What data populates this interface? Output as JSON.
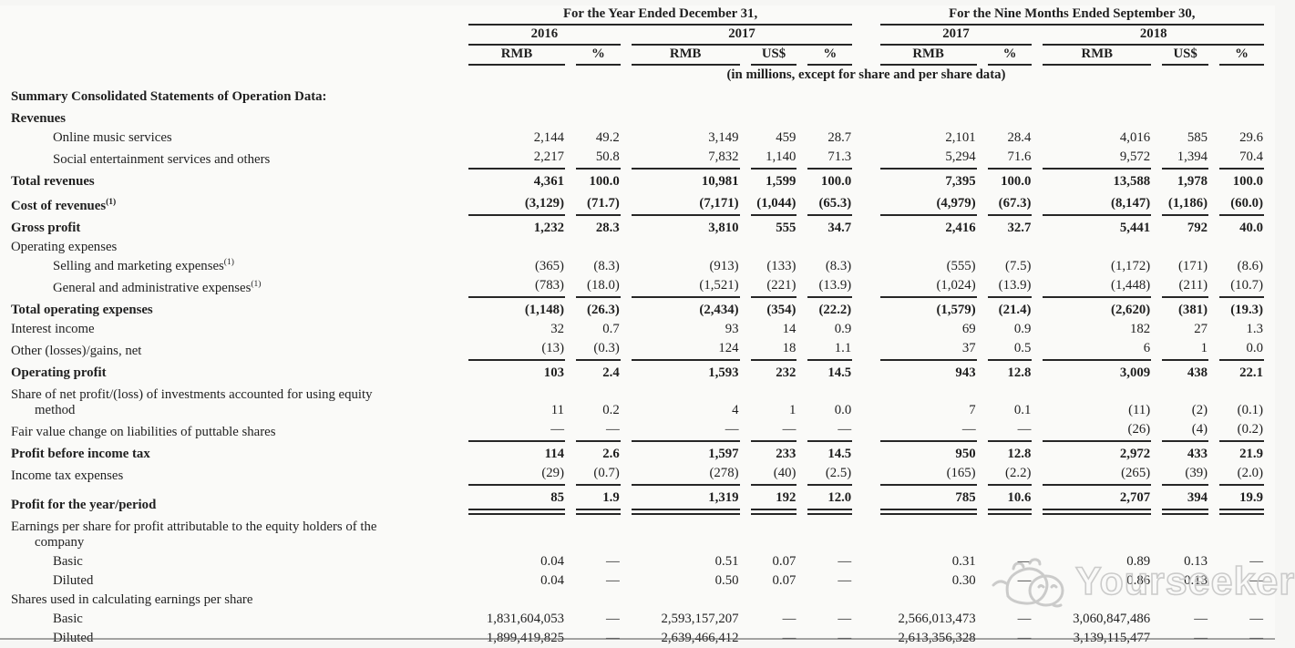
{
  "header": {
    "group1": "For the Year Ended December 31,",
    "group2": "For the Nine Months Ended September 30,",
    "periods": [
      {
        "year": "2016",
        "cols": [
          "RMB",
          "%"
        ]
      },
      {
        "year": "2017",
        "cols": [
          "RMB",
          "US$",
          "%"
        ]
      },
      {
        "year": "2017",
        "cols": [
          "RMB",
          "%"
        ]
      },
      {
        "year": "2018",
        "cols": [
          "RMB",
          "US$",
          "%"
        ]
      }
    ],
    "units_note": "(in millions, except for share and per share data)"
  },
  "watermark": {
    "text": "Yourseeker",
    "logo": "yourseeker-mascot-icon",
    "color": "#c6c6c6"
  },
  "accent_colors": {
    "text": "#1f1f1f",
    "rule": "#262626",
    "background": "#fafaf8"
  },
  "rows": [
    {
      "label": "Summary Consolidated Statements of Operation Data:",
      "bold": true,
      "values": null
    },
    {
      "label": "Revenues",
      "bold": true,
      "values": null
    },
    {
      "label": "Online music services",
      "indent": 1,
      "values": [
        "2,144",
        "49.2",
        "3,149",
        "459",
        "28.7",
        "2,101",
        "28.4",
        "4,016",
        "585",
        "29.6"
      ]
    },
    {
      "label": "Social entertainment services and others",
      "indent": 1,
      "underline": "s",
      "values": [
        "2,217",
        "50.8",
        "7,832",
        "1,140",
        "71.3",
        "5,294",
        "71.6",
        "9,572",
        "1,394",
        "70.4"
      ]
    },
    {
      "label": "Total revenues",
      "bold": true,
      "vbold": true,
      "values": [
        "4,361",
        "100.0",
        "10,981",
        "1,599",
        "100.0",
        "7,395",
        "100.0",
        "13,588",
        "1,978",
        "100.0"
      ]
    },
    {
      "label": "Cost of revenues",
      "sup": "(1)",
      "bold": true,
      "vbold": true,
      "underline": "s",
      "values": [
        "(3,129)",
        "(71.7)",
        "(7,171)",
        "(1,044)",
        "(65.3)",
        "(4,979)",
        "(67.3)",
        "(8,147)",
        "(1,186)",
        "(60.0)"
      ]
    },
    {
      "label": "Gross profit",
      "bold": true,
      "vbold": true,
      "values": [
        "1,232",
        "28.3",
        "3,810",
        "555",
        "34.7",
        "2,416",
        "32.7",
        "5,441",
        "792",
        "40.0"
      ]
    },
    {
      "label": "Operating expenses",
      "values": null
    },
    {
      "label": "Selling and marketing expenses",
      "sup": "(1)",
      "indent": 1,
      "values": [
        "(365)",
        "(8.3)",
        "(913)",
        "(133)",
        "(8.3)",
        "(555)",
        "(7.5)",
        "(1,172)",
        "(171)",
        "(8.6)"
      ]
    },
    {
      "label": "General and administrative expenses",
      "sup": "(1)",
      "indent": 1,
      "underline": "s",
      "values": [
        "(783)",
        "(18.0)",
        "(1,521)",
        "(221)",
        "(13.9)",
        "(1,024)",
        "(13.9)",
        "(1,448)",
        "(211)",
        "(10.7)"
      ]
    },
    {
      "label": "Total operating expenses",
      "bold": true,
      "vbold": true,
      "values": [
        "(1,148)",
        "(26.3)",
        "(2,434)",
        "(354)",
        "(22.2)",
        "(1,579)",
        "(21.4)",
        "(2,620)",
        "(381)",
        "(19.3)"
      ]
    },
    {
      "label": "Interest income",
      "values": [
        "32",
        "0.7",
        "93",
        "14",
        "0.9",
        "69",
        "0.9",
        "182",
        "27",
        "1.3"
      ]
    },
    {
      "label": "Other (losses)/gains, net",
      "underline": "s",
      "values": [
        "(13)",
        "(0.3)",
        "124",
        "18",
        "1.1",
        "37",
        "0.5",
        "6",
        "1",
        "0.0"
      ]
    },
    {
      "label": "Operating profit",
      "bold": true,
      "vbold": true,
      "values": [
        "103",
        "2.4",
        "1,593",
        "232",
        "14.5",
        "943",
        "12.8",
        "3,009",
        "438",
        "22.1"
      ]
    },
    {
      "label": "Share of net profit/(loss) of investments accounted for using equity",
      "label2": "method",
      "values": [
        "11",
        "0.2",
        "4",
        "1",
        "0.0",
        "7",
        "0.1",
        "(11)",
        "(2)",
        "(0.1)"
      ]
    },
    {
      "label": "Fair value change on liabilities of puttable shares",
      "underline": "s",
      "values": [
        "—",
        "—",
        "—",
        "—",
        "—",
        "—",
        "—",
        "(26)",
        "(4)",
        "(0.2)"
      ]
    },
    {
      "label": "Profit before income tax",
      "bold": true,
      "vbold": true,
      "values": [
        "114",
        "2.6",
        "1,597",
        "233",
        "14.5",
        "950",
        "12.8",
        "2,972",
        "433",
        "21.9"
      ]
    },
    {
      "label": "Income tax expenses",
      "underline": "s",
      "values": [
        "(29)",
        "(0.7)",
        "(278)",
        "(40)",
        "(2.5)",
        "(165)",
        "(2.2)",
        "(265)",
        "(39)",
        "(2.0)"
      ]
    },
    {
      "label": "Profit for the year/period",
      "bold": true,
      "vbold": true,
      "underline": "d",
      "values": [
        "85",
        "1.9",
        "1,319",
        "192",
        "12.0",
        "785",
        "10.6",
        "2,707",
        "394",
        "19.9"
      ]
    },
    {
      "label": "Earnings per share for profit attributable to the equity holders of the",
      "label2": "company",
      "values": null
    },
    {
      "label": "Basic",
      "indent": 1,
      "values": [
        "0.04",
        "—",
        "0.51",
        "0.07",
        "—",
        "0.31",
        "—",
        "0.89",
        "0.13",
        "—"
      ]
    },
    {
      "label": "Diluted",
      "indent": 1,
      "values": [
        "0.04",
        "—",
        "0.50",
        "0.07",
        "—",
        "0.30",
        "—",
        "0.86",
        "0.13",
        "—"
      ]
    },
    {
      "label": "Shares used in calculating earnings per share",
      "values": null
    },
    {
      "label": "Basic",
      "indent": 1,
      "values": [
        "1,831,604,053",
        "—",
        "2,593,157,207",
        "—",
        "—",
        "2,566,013,473",
        "—",
        "3,060,847,486",
        "—",
        "—"
      ]
    },
    {
      "label": "Diluted",
      "indent": 1,
      "values": [
        "1,899,419,825",
        "—",
        "2,639,466,412",
        "—",
        "—",
        "2,613,356,328",
        "—",
        "3,139,115,477",
        "—",
        "—"
      ]
    }
  ]
}
